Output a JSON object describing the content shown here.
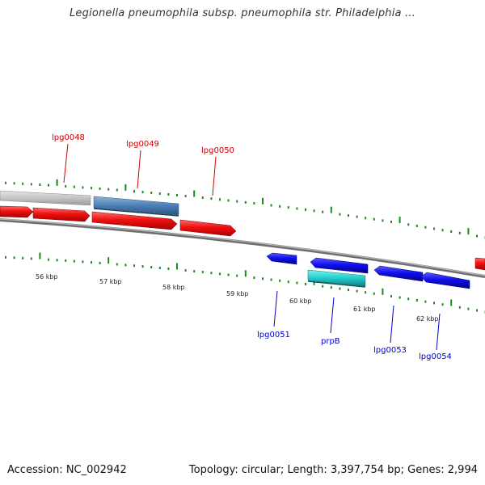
{
  "title": "Legionella pneumophila subsp. pneumophila str. Philadelphia ...",
  "footer": {
    "accession": "Accession: NC_002942",
    "summary": "Topology: circular; Length: 3,397,754 bp; Genes: 2,994"
  },
  "colors": {
    "gene_label_top": "#cc0000",
    "gene_label_bottom": "#0000cc",
    "leader_top": "#cc0000",
    "leader_bottom": "#0000cc",
    "backbone": "#888888",
    "tick": "#1a8a1a",
    "cds_red": "#ee1111",
    "cds_blue": "#1010ee",
    "cds_steelblue": "#4a7fb5",
    "cds_cyan": "#22cccc",
    "cds_gray": "#c4c4c4"
  },
  "kbp_scale": {
    "labels": [
      "56 kbp",
      "57 kbp",
      "58 kbp",
      "59 kbp",
      "60 kbp",
      "61 kbp",
      "62 kbp"
    ]
  },
  "genes_top_labels": [
    "lpg0048",
    "lpg0049",
    "lpg0050"
  ],
  "genes_bottom_labels": [
    "lpg0051",
    "prpB",
    "lpg0053",
    "lpg0054"
  ]
}
